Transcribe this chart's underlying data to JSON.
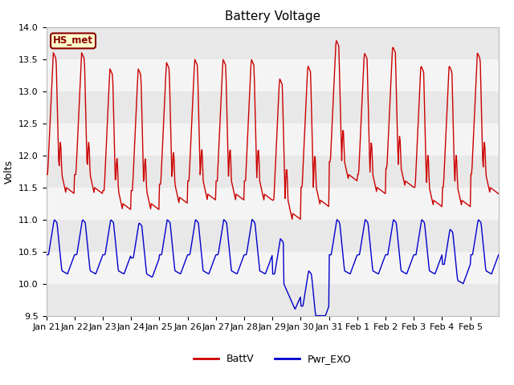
{
  "title": "Battery Voltage",
  "ylabel": "Volts",
  "ylim": [
    9.5,
    14.0
  ],
  "yticks": [
    9.5,
    10.0,
    10.5,
    11.0,
    11.5,
    12.0,
    12.5,
    13.0,
    13.5,
    14.0
  ],
  "xtick_labels": [
    "Jan 21",
    "Jan 22",
    "Jan 23",
    "Jan 24",
    "Jan 25",
    "Jan 26",
    "Jan 27",
    "Jan 28",
    "Jan 29",
    "Jan 30",
    "Jan 31",
    "Feb 1",
    "Feb 2",
    "Feb 3",
    "Feb 4",
    "Feb 5"
  ],
  "annotation_text": "HS_met",
  "annotation_bg": "#ffffcc",
  "annotation_border": "#8b0000",
  "line_battv_color": "#cc0000",
  "line_pwr_color": "#0000cc",
  "fig_bg_color": "#ffffff",
  "plot_bg_color": "#ffffff",
  "stripe_dark": "#e8e8e8",
  "stripe_light": "#f4f4f4",
  "title_fontsize": 11,
  "label_fontsize": 9,
  "tick_fontsize": 8,
  "legend_fontsize": 9,
  "n_days": 16
}
